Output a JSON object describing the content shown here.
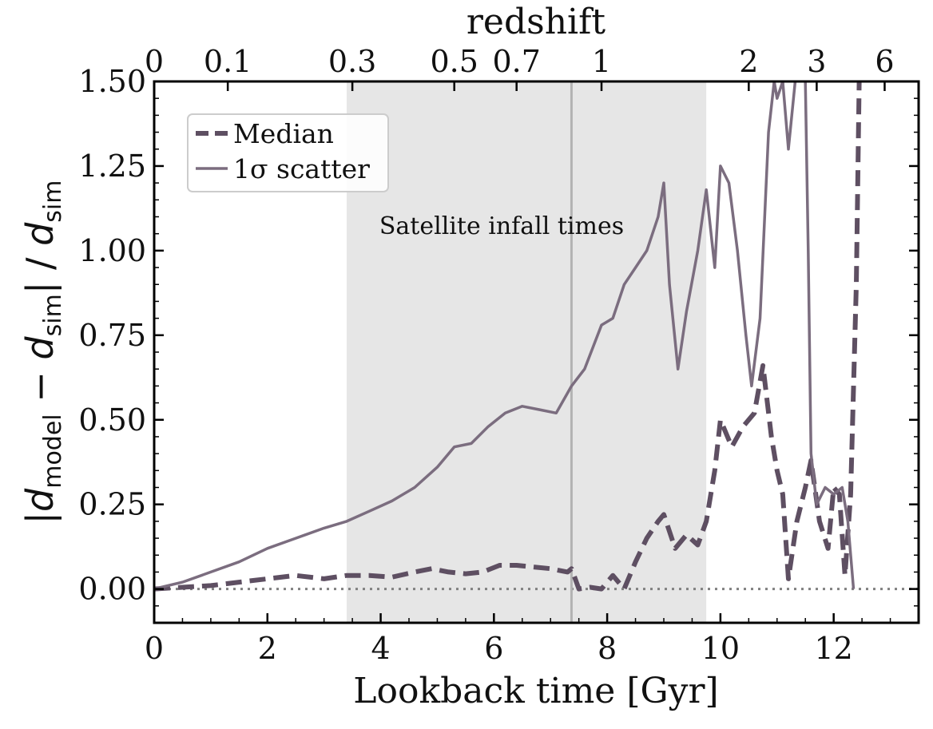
{
  "chart_data": {
    "type": "line",
    "xlabel": "Lookback time [Gyr]",
    "ylabel_html": "|d_model − d_sim| / d_sim",
    "ylabel_parts": {
      "bar_open": "|",
      "d1": "d",
      "sub1": "model",
      "minus": " − ",
      "d2": "d",
      "sub2": "sim",
      "bar_close": "|",
      "slash": " / ",
      "d3": "d",
      "sub3": "sim"
    },
    "top_axis_label": "redshift",
    "xlim": [
      0,
      13.5
    ],
    "ylim": [
      -0.1,
      1.5
    ],
    "xticks": [
      0,
      2,
      4,
      6,
      8,
      10,
      12
    ],
    "xtick_labels": [
      "0",
      "2",
      "4",
      "6",
      "8",
      "10",
      "12"
    ],
    "yticks": [
      0.0,
      0.25,
      0.5,
      0.75,
      1.0,
      1.25,
      1.5
    ],
    "ytick_labels": [
      "0.00",
      "0.25",
      "0.50",
      "0.75",
      "1.00",
      "1.25",
      "1.50"
    ],
    "redshift_ticks": [
      {
        "label": "0",
        "t": 0.0
      },
      {
        "label": "0.1",
        "t": 1.3
      },
      {
        "label": "0.3",
        "t": 3.5
      },
      {
        "label": "0.5",
        "t": 5.3
      },
      {
        "label": "0.7",
        "t": 6.4
      },
      {
        "label": "1",
        "t": 7.9
      },
      {
        "label": "2",
        "t": 10.5
      },
      {
        "label": "3",
        "t": 11.7
      },
      {
        "label": "6",
        "t": 12.9
      }
    ],
    "shaded_region": {
      "x": [
        3.4,
        9.75
      ],
      "label": "Satellite infall times",
      "color": "#e6e6e6"
    },
    "vertical_line": {
      "x": 7.37,
      "color": "#b3b3b3"
    },
    "reference_line": {
      "y": 0.0,
      "style": "dotted",
      "color": "#808080"
    },
    "legend": {
      "placement": "upper-left",
      "entries": [
        "Median",
        "1σ scatter"
      ]
    },
    "series": [
      {
        "name": "Median",
        "style": "dashed",
        "color": "#5e4f62",
        "x": [
          0,
          0.5,
          1.0,
          1.5,
          2.0,
          2.5,
          3.0,
          3.4,
          3.8,
          4.2,
          4.6,
          4.9,
          5.2,
          5.5,
          5.8,
          6.1,
          6.4,
          6.7,
          7.0,
          7.3,
          7.37,
          7.5,
          7.7,
          7.9,
          8.1,
          8.3,
          8.5,
          8.7,
          8.9,
          9.0,
          9.2,
          9.4,
          9.6,
          9.75,
          9.9,
          10.0,
          10.2,
          10.4,
          10.6,
          10.75,
          10.9,
          11.0,
          11.1,
          11.2,
          11.35,
          11.5,
          11.6,
          11.75,
          11.9,
          12.0,
          12.1,
          12.2,
          12.3,
          12.4,
          12.45
        ],
        "y": [
          0.0,
          0.005,
          0.01,
          0.02,
          0.03,
          0.04,
          0.03,
          0.04,
          0.04,
          0.035,
          0.05,
          0.06,
          0.05,
          0.045,
          0.05,
          0.07,
          0.07,
          0.065,
          0.06,
          0.05,
          0.06,
          0.0,
          0.005,
          0.0,
          0.04,
          0.0,
          0.08,
          0.15,
          0.2,
          0.22,
          0.12,
          0.16,
          0.13,
          0.2,
          0.35,
          0.5,
          0.42,
          0.48,
          0.52,
          0.66,
          0.45,
          0.35,
          0.28,
          0.03,
          0.2,
          0.3,
          0.38,
          0.2,
          0.12,
          0.3,
          0.28,
          0.04,
          0.28,
          0.9,
          1.5
        ]
      },
      {
        "name": "1σ scatter",
        "style": "solid",
        "color": "#7b6d7f",
        "x": [
          0,
          0.5,
          1.0,
          1.5,
          2.0,
          2.5,
          3.0,
          3.4,
          3.8,
          4.2,
          4.6,
          5.0,
          5.3,
          5.6,
          5.9,
          6.2,
          6.5,
          6.8,
          7.1,
          7.37,
          7.6,
          7.9,
          8.1,
          8.3,
          8.5,
          8.7,
          8.9,
          9.0,
          9.1,
          9.25,
          9.4,
          9.6,
          9.75,
          9.9,
          10.0,
          10.15,
          10.3,
          10.45,
          10.55,
          10.7,
          10.85,
          10.95,
          11.0,
          11.1,
          11.2,
          11.35,
          11.5,
          11.55,
          11.6,
          11.7,
          11.85,
          12.0,
          12.15,
          12.25,
          12.35
        ],
        "y": [
          0.0,
          0.02,
          0.05,
          0.08,
          0.12,
          0.15,
          0.18,
          0.2,
          0.23,
          0.26,
          0.3,
          0.36,
          0.42,
          0.43,
          0.48,
          0.52,
          0.54,
          0.53,
          0.52,
          0.6,
          0.65,
          0.78,
          0.8,
          0.9,
          0.95,
          1.0,
          1.1,
          1.2,
          0.9,
          0.65,
          0.82,
          1.0,
          1.18,
          0.95,
          1.25,
          1.2,
          1.0,
          0.75,
          0.6,
          0.8,
          1.35,
          1.5,
          1.45,
          1.5,
          1.3,
          1.55,
          1.5,
          1.0,
          0.4,
          0.25,
          0.3,
          0.28,
          0.3,
          0.2,
          0.0
        ]
      }
    ]
  }
}
